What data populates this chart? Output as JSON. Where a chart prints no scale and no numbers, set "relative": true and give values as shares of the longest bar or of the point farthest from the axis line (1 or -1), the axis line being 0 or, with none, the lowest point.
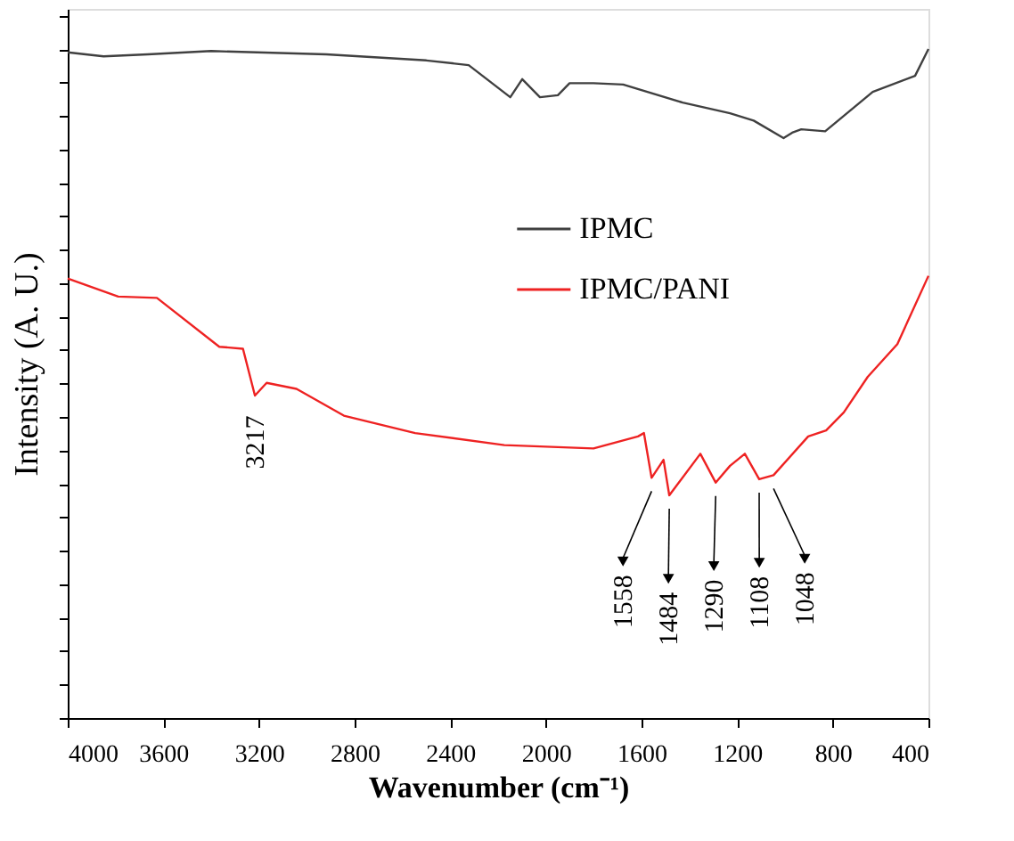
{
  "chart_data": {
    "type": "line",
    "relative": true,
    "xlabel": "Wavenumber (cm⁻¹)",
    "ylabel": "Intensity (A. U.)",
    "xlim": [
      4000,
      400
    ],
    "xticks": [
      4000,
      3600,
      3200,
      2800,
      2400,
      2000,
      1600,
      1200,
      800,
      400
    ],
    "legend": "right",
    "grid": false,
    "line_style": "solid",
    "series": [
      {
        "name": "IPMC",
        "color": "#404040",
        "x": [
          4000,
          3850,
          3665,
          3400,
          2919,
          2500,
          2323,
          2149,
          2099,
          2025,
          1950,
          1901,
          1801,
          1677,
          1428,
          1230,
          1131,
          1006,
          970,
          932,
          832,
          633,
          456,
          400
        ],
        "values": [
          0.995,
          0.989,
          0.992,
          0.997,
          0.992,
          0.983,
          0.976,
          0.928,
          0.955,
          0.928,
          0.931,
          0.949,
          0.949,
          0.947,
          0.92,
          0.904,
          0.893,
          0.867,
          0.875,
          0.88,
          0.877,
          0.936,
          0.96,
          1.0
        ]
      },
      {
        "name": "IPMC/PANI",
        "color": "#ee2222",
        "x": [
          4000,
          3789,
          3627,
          3366,
          3267,
          3217,
          3168,
          3043,
          2845,
          2547,
          2174,
          1801,
          1615,
          1590,
          1558,
          1508,
          1484,
          1354,
          1290,
          1230,
          1168,
          1108,
          1048,
          903,
          828,
          754,
          654,
          530,
          400
        ],
        "values": [
          0.657,
          0.63,
          0.628,
          0.555,
          0.552,
          0.482,
          0.501,
          0.492,
          0.452,
          0.426,
          0.408,
          0.403,
          0.421,
          0.426,
          0.359,
          0.386,
          0.333,
          0.395,
          0.352,
          0.377,
          0.395,
          0.357,
          0.363,
          0.421,
          0.43,
          0.457,
          0.51,
          0.559,
          0.661
        ]
      }
    ],
    "annotations": [
      {
        "text": "3217",
        "x": 3217,
        "y": 0.482
      },
      {
        "text": "1558",
        "x": 1558,
        "y": 0.359
      },
      {
        "text": "1484",
        "x": 1484,
        "y": 0.333
      },
      {
        "text": "1290",
        "x": 1290,
        "y": 0.352
      },
      {
        "text": "1108",
        "x": 1108,
        "y": 0.357
      },
      {
        "text": "1048",
        "x": 1048,
        "y": 0.363
      }
    ]
  }
}
